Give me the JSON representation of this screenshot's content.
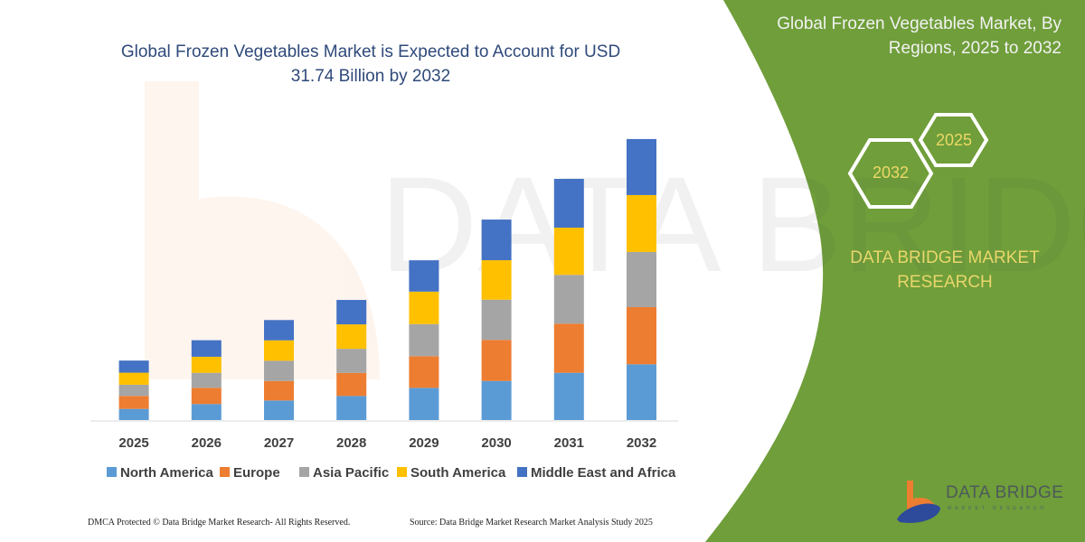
{
  "header": {
    "title": "Global Frozen Vegetables Market is Expected to Account for USD 31.74 Billion by 2032"
  },
  "side_panel": {
    "title": "Global Frozen Vegetables Market, By Regions, 2025 to 2032",
    "hex_start": "2025",
    "hex_end": "2032",
    "brand": "DATA BRIDGE MARKET RESEARCH",
    "logo_text": "DATA BRIDGE",
    "logo_subtext": "MARKET RESEARCH",
    "panel_color": "#6f9e3a"
  },
  "footer": {
    "copyright": "DMCA Protected © Data Bridge Market Research-  All Rights Reserved.",
    "source": "Source: Data Bridge Market Research  Market Analysis Study 2025"
  },
  "chart_data": {
    "type": "bar",
    "stacked": true,
    "title": "Global Frozen Vegetables Market is Expected to Account for USD 31.74 Billion by 2032",
    "xlabel": "",
    "ylabel": "",
    "y_axis_visible": false,
    "grid": false,
    "legend_position": "bottom",
    "unit": "USD Billion",
    "categories": [
      "2025",
      "2026",
      "2027",
      "2028",
      "2029",
      "2030",
      "2031",
      "2032"
    ],
    "ylim": [
      0,
      31.74
    ],
    "series": [
      {
        "name": "North America",
        "color": "#5b9bd5",
        "values": [
          1.26,
          1.81,
          2.21,
          2.72,
          3.64,
          4.42,
          5.34,
          6.3
        ]
      },
      {
        "name": "Europe",
        "color": "#ed7d31",
        "values": [
          1.47,
          1.84,
          2.2,
          2.61,
          3.57,
          4.63,
          5.55,
          6.46
        ]
      },
      {
        "name": "Asia Pacific",
        "color": "#a5a5a5",
        "values": [
          1.26,
          1.69,
          2.29,
          2.72,
          3.63,
          4.55,
          5.51,
          6.23
        ]
      },
      {
        "name": "South America",
        "color": "#ffc000",
        "values": [
          1.36,
          1.81,
          2.31,
          2.76,
          3.67,
          4.46,
          5.34,
          6.43
        ]
      },
      {
        "name": "Middle East and Africa",
        "color": "#4472c4",
        "values": [
          1.37,
          1.87,
          2.29,
          2.76,
          3.54,
          4.59,
          5.51,
          6.33
        ]
      }
    ]
  }
}
